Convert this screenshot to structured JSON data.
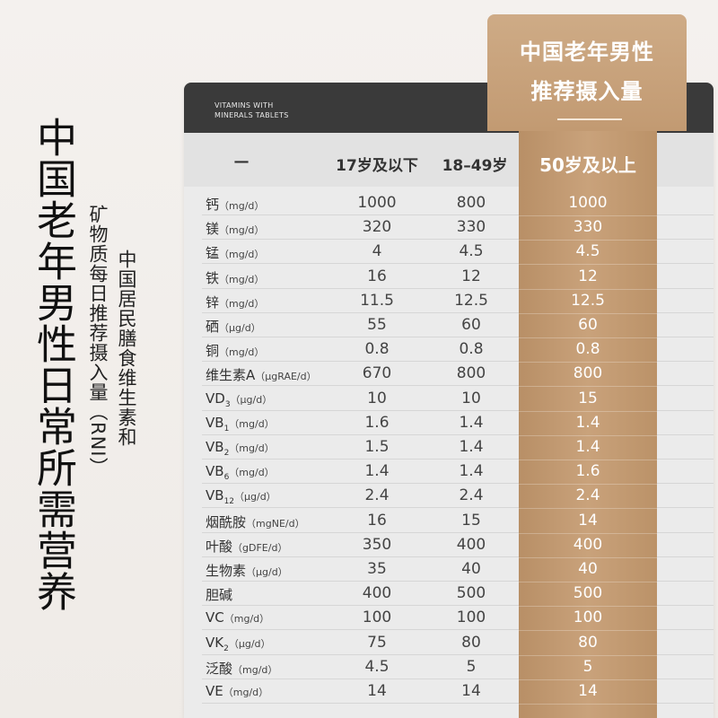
{
  "title": {
    "main": "中国老年男性日常所需营养",
    "sub_line1": "中国居民膳食维生素和",
    "sub_line2": "矿物质每日推荐摄入量（RNI）"
  },
  "brand": {
    "line1": "VITAMINS WITH",
    "line2": "MINERALS TABLETS"
  },
  "highlight_header": {
    "line1": "中国老年男性",
    "line2": "推荐摄入量"
  },
  "columns": {
    "nutrient": "—",
    "c1": "17岁及以下",
    "c2": "18–49岁",
    "c3": "50岁及以上"
  },
  "colors": {
    "gold": "#c29a72",
    "dark_bar": "#3a3a3a",
    "table_bg": "#ebebeb"
  },
  "rows": [
    {
      "name": "钙",
      "sub": "",
      "unit": "（mg/d）",
      "v17": "1000",
      "v18_49": "800",
      "v50": "1000"
    },
    {
      "name": "镁",
      "sub": "",
      "unit": "（mg/d）",
      "v17": "320",
      "v18_49": "330",
      "v50": "330"
    },
    {
      "name": "锰",
      "sub": "",
      "unit": "（mg/d）",
      "v17": "4",
      "v18_49": "4.5",
      "v50": "4.5"
    },
    {
      "name": "铁",
      "sub": "",
      "unit": "（mg/d）",
      "v17": "16",
      "v18_49": "12",
      "v50": "12"
    },
    {
      "name": "锌",
      "sub": "",
      "unit": "（mg/d）",
      "v17": "11.5",
      "v18_49": "12.5",
      "v50": "12.5"
    },
    {
      "name": "硒",
      "sub": "",
      "unit": "（μg/d）",
      "v17": "55",
      "v18_49": "60",
      "v50": "60"
    },
    {
      "name": "铜",
      "sub": "",
      "unit": "（mg/d）",
      "v17": "0.8",
      "v18_49": "0.8",
      "v50": "0.8"
    },
    {
      "name": "维生素A",
      "sub": "",
      "unit": "（μgRAE/d）",
      "v17": "670",
      "v18_49": "800",
      "v50": "800"
    },
    {
      "name": "VD",
      "sub": "3",
      "unit": "（μg/d）",
      "v17": "10",
      "v18_49": "10",
      "v50": "15"
    },
    {
      "name": "VB",
      "sub": "1",
      "unit": "（mg/d）",
      "v17": "1.6",
      "v18_49": "1.4",
      "v50": "1.4"
    },
    {
      "name": "VB",
      "sub": "2",
      "unit": "（mg/d）",
      "v17": "1.5",
      "v18_49": "1.4",
      "v50": "1.4"
    },
    {
      "name": "VB",
      "sub": "6",
      "unit": "（mg/d）",
      "v17": "1.4",
      "v18_49": "1.4",
      "v50": "1.6"
    },
    {
      "name": "VB",
      "sub": "12",
      "unit": "（μg/d）",
      "v17": "2.4",
      "v18_49": "2.4",
      "v50": "2.4"
    },
    {
      "name": "烟酰胺",
      "sub": "",
      "unit": "（mgNE/d）",
      "v17": "16",
      "v18_49": "15",
      "v50": "14"
    },
    {
      "name": "叶酸",
      "sub": "",
      "unit": "（gDFE/d）",
      "v17": "350",
      "v18_49": "400",
      "v50": "400"
    },
    {
      "name": "生物素",
      "sub": "",
      "unit": "（μg/d）",
      "v17": "35",
      "v18_49": "40",
      "v50": "40"
    },
    {
      "name": "胆碱",
      "sub": "",
      "unit": "",
      "v17": "400",
      "v18_49": "500",
      "v50": "500"
    },
    {
      "name": "VC",
      "sub": "",
      "unit": "（mg/d）",
      "v17": "100",
      "v18_49": "100",
      "v50": "100"
    },
    {
      "name": "VK",
      "sub": "2",
      "unit": "（μg/d）",
      "v17": "75",
      "v18_49": "80",
      "v50": "80"
    },
    {
      "name": "泛酸",
      "sub": "",
      "unit": "（mg/d）",
      "v17": "4.5",
      "v18_49": "5",
      "v50": "5"
    },
    {
      "name": "VE",
      "sub": "",
      "unit": "（mg/d）",
      "v17": "14",
      "v18_49": "14",
      "v50": "14"
    }
  ]
}
